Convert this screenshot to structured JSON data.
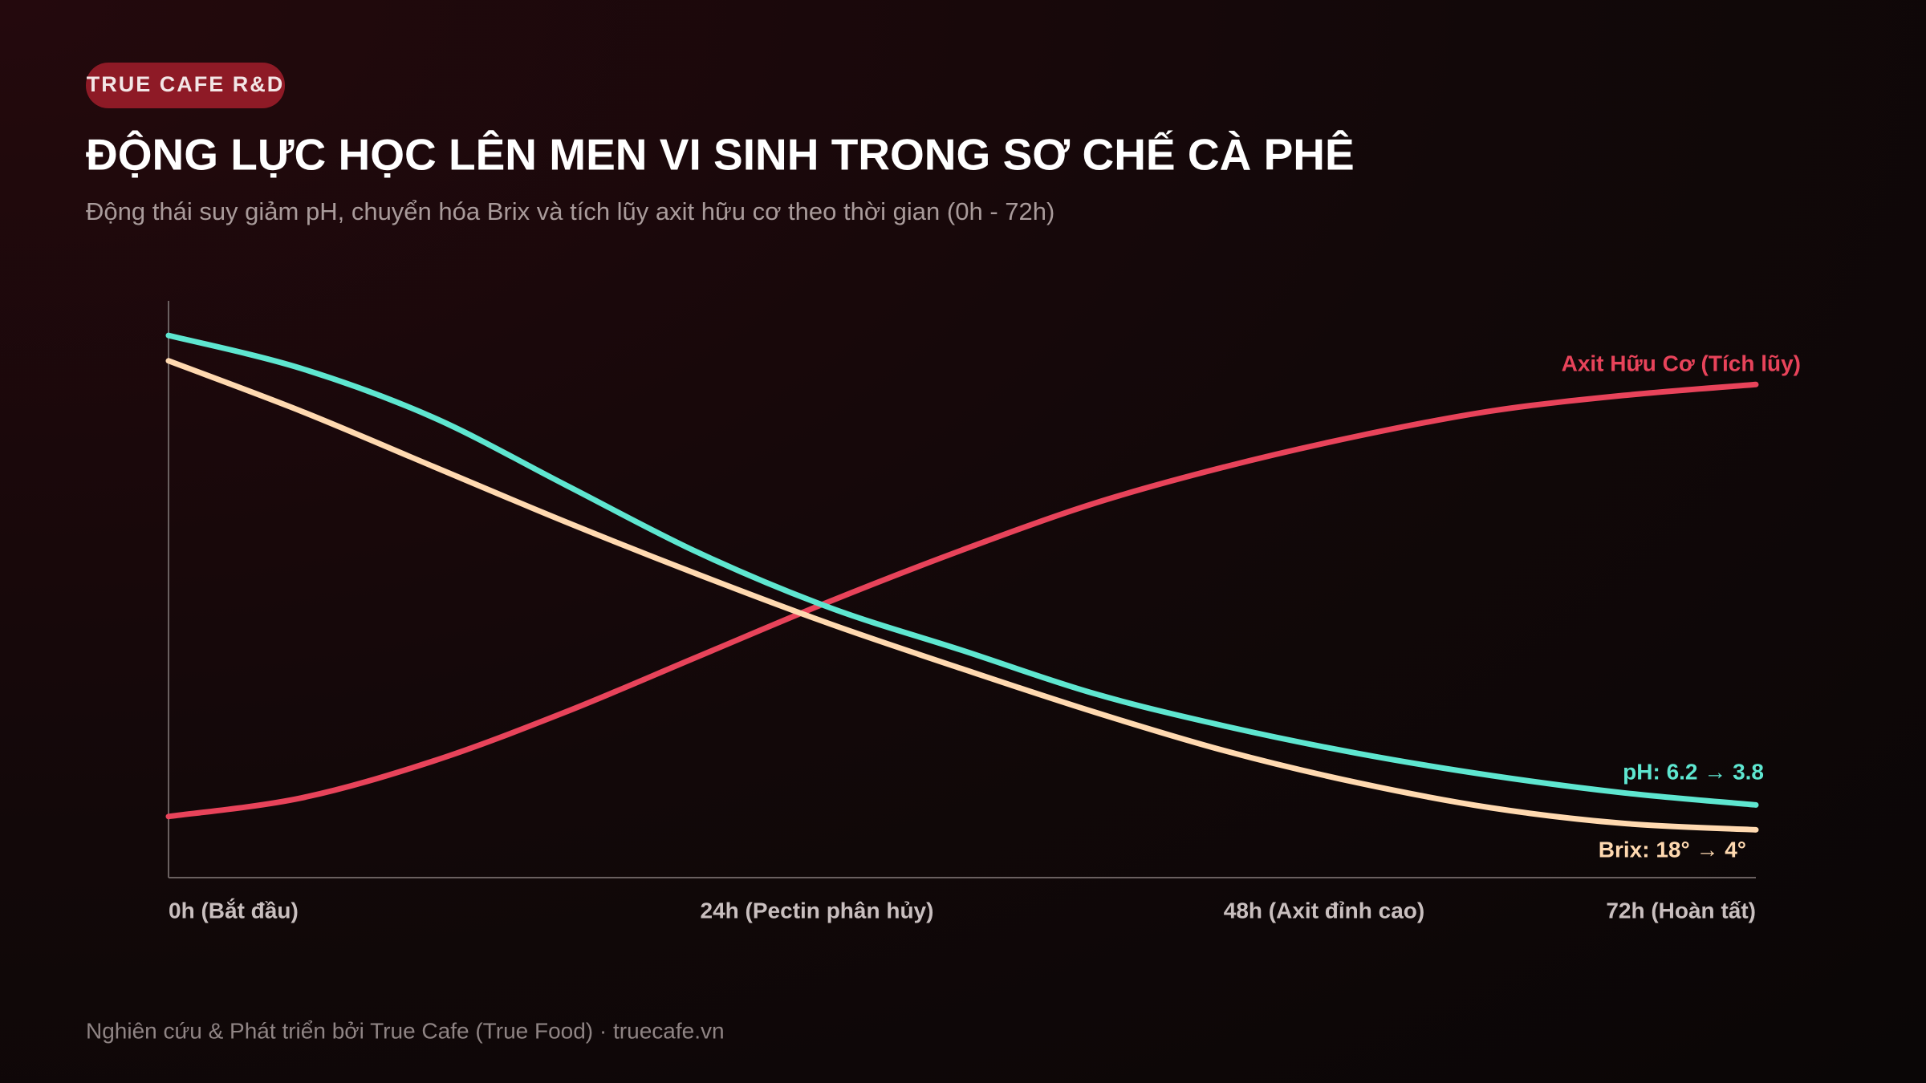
{
  "badge": "TRUE CAFE R&D",
  "chart_data": {
    "type": "line",
    "title": "ĐỘNG LỰC HỌC LÊN MEN VI SINH TRONG SƠ CHẾ CÀ PHÊ",
    "subtitle": "Động thái suy giảm pH, chuyển hóa Brix và tích lũy axit hữu cơ theo thời gian (0h - 72h)",
    "x": [
      0,
      6,
      12,
      18,
      24,
      30,
      36,
      42,
      48,
      54,
      60,
      66,
      72
    ],
    "xlim": [
      0,
      72
    ],
    "ylim": [
      0,
      100
    ],
    "axis_labels": [
      "0h (Bắt đầu)",
      "24h (Pectin phân hủy)",
      "48h (Axit đỉnh cao)",
      "72h (Hoàn tất)"
    ],
    "series": [
      {
        "name": "Axit Hữu Cơ (Tích lũy)",
        "color": "#e8435a",
        "values": [
          10.6,
          13.8,
          20.2,
          28.7,
          38.3,
          47.9,
          56.8,
          64.9,
          71.3,
          76.6,
          80.9,
          83.6,
          85.5
        ]
      },
      {
        "name": "pH: 6.2 → 3.8",
        "color": "#5ee6d0",
        "values": [
          94.0,
          88.3,
          79.8,
          68.1,
          56.4,
          46.8,
          39.4,
          31.9,
          26.2,
          21.5,
          17.7,
          14.7,
          12.6
        ]
      },
      {
        "name": "Brix: 18° → 4°",
        "color": "#ffd9b0",
        "values": [
          89.6,
          80.9,
          71.3,
          61.7,
          52.6,
          44.0,
          36.2,
          28.7,
          21.9,
          16.4,
          12.1,
          9.4,
          8.3
        ]
      }
    ],
    "footer": "Nghiên cứu & Phát triển bởi True Cafe (True Food) · truecafe.vn"
  }
}
